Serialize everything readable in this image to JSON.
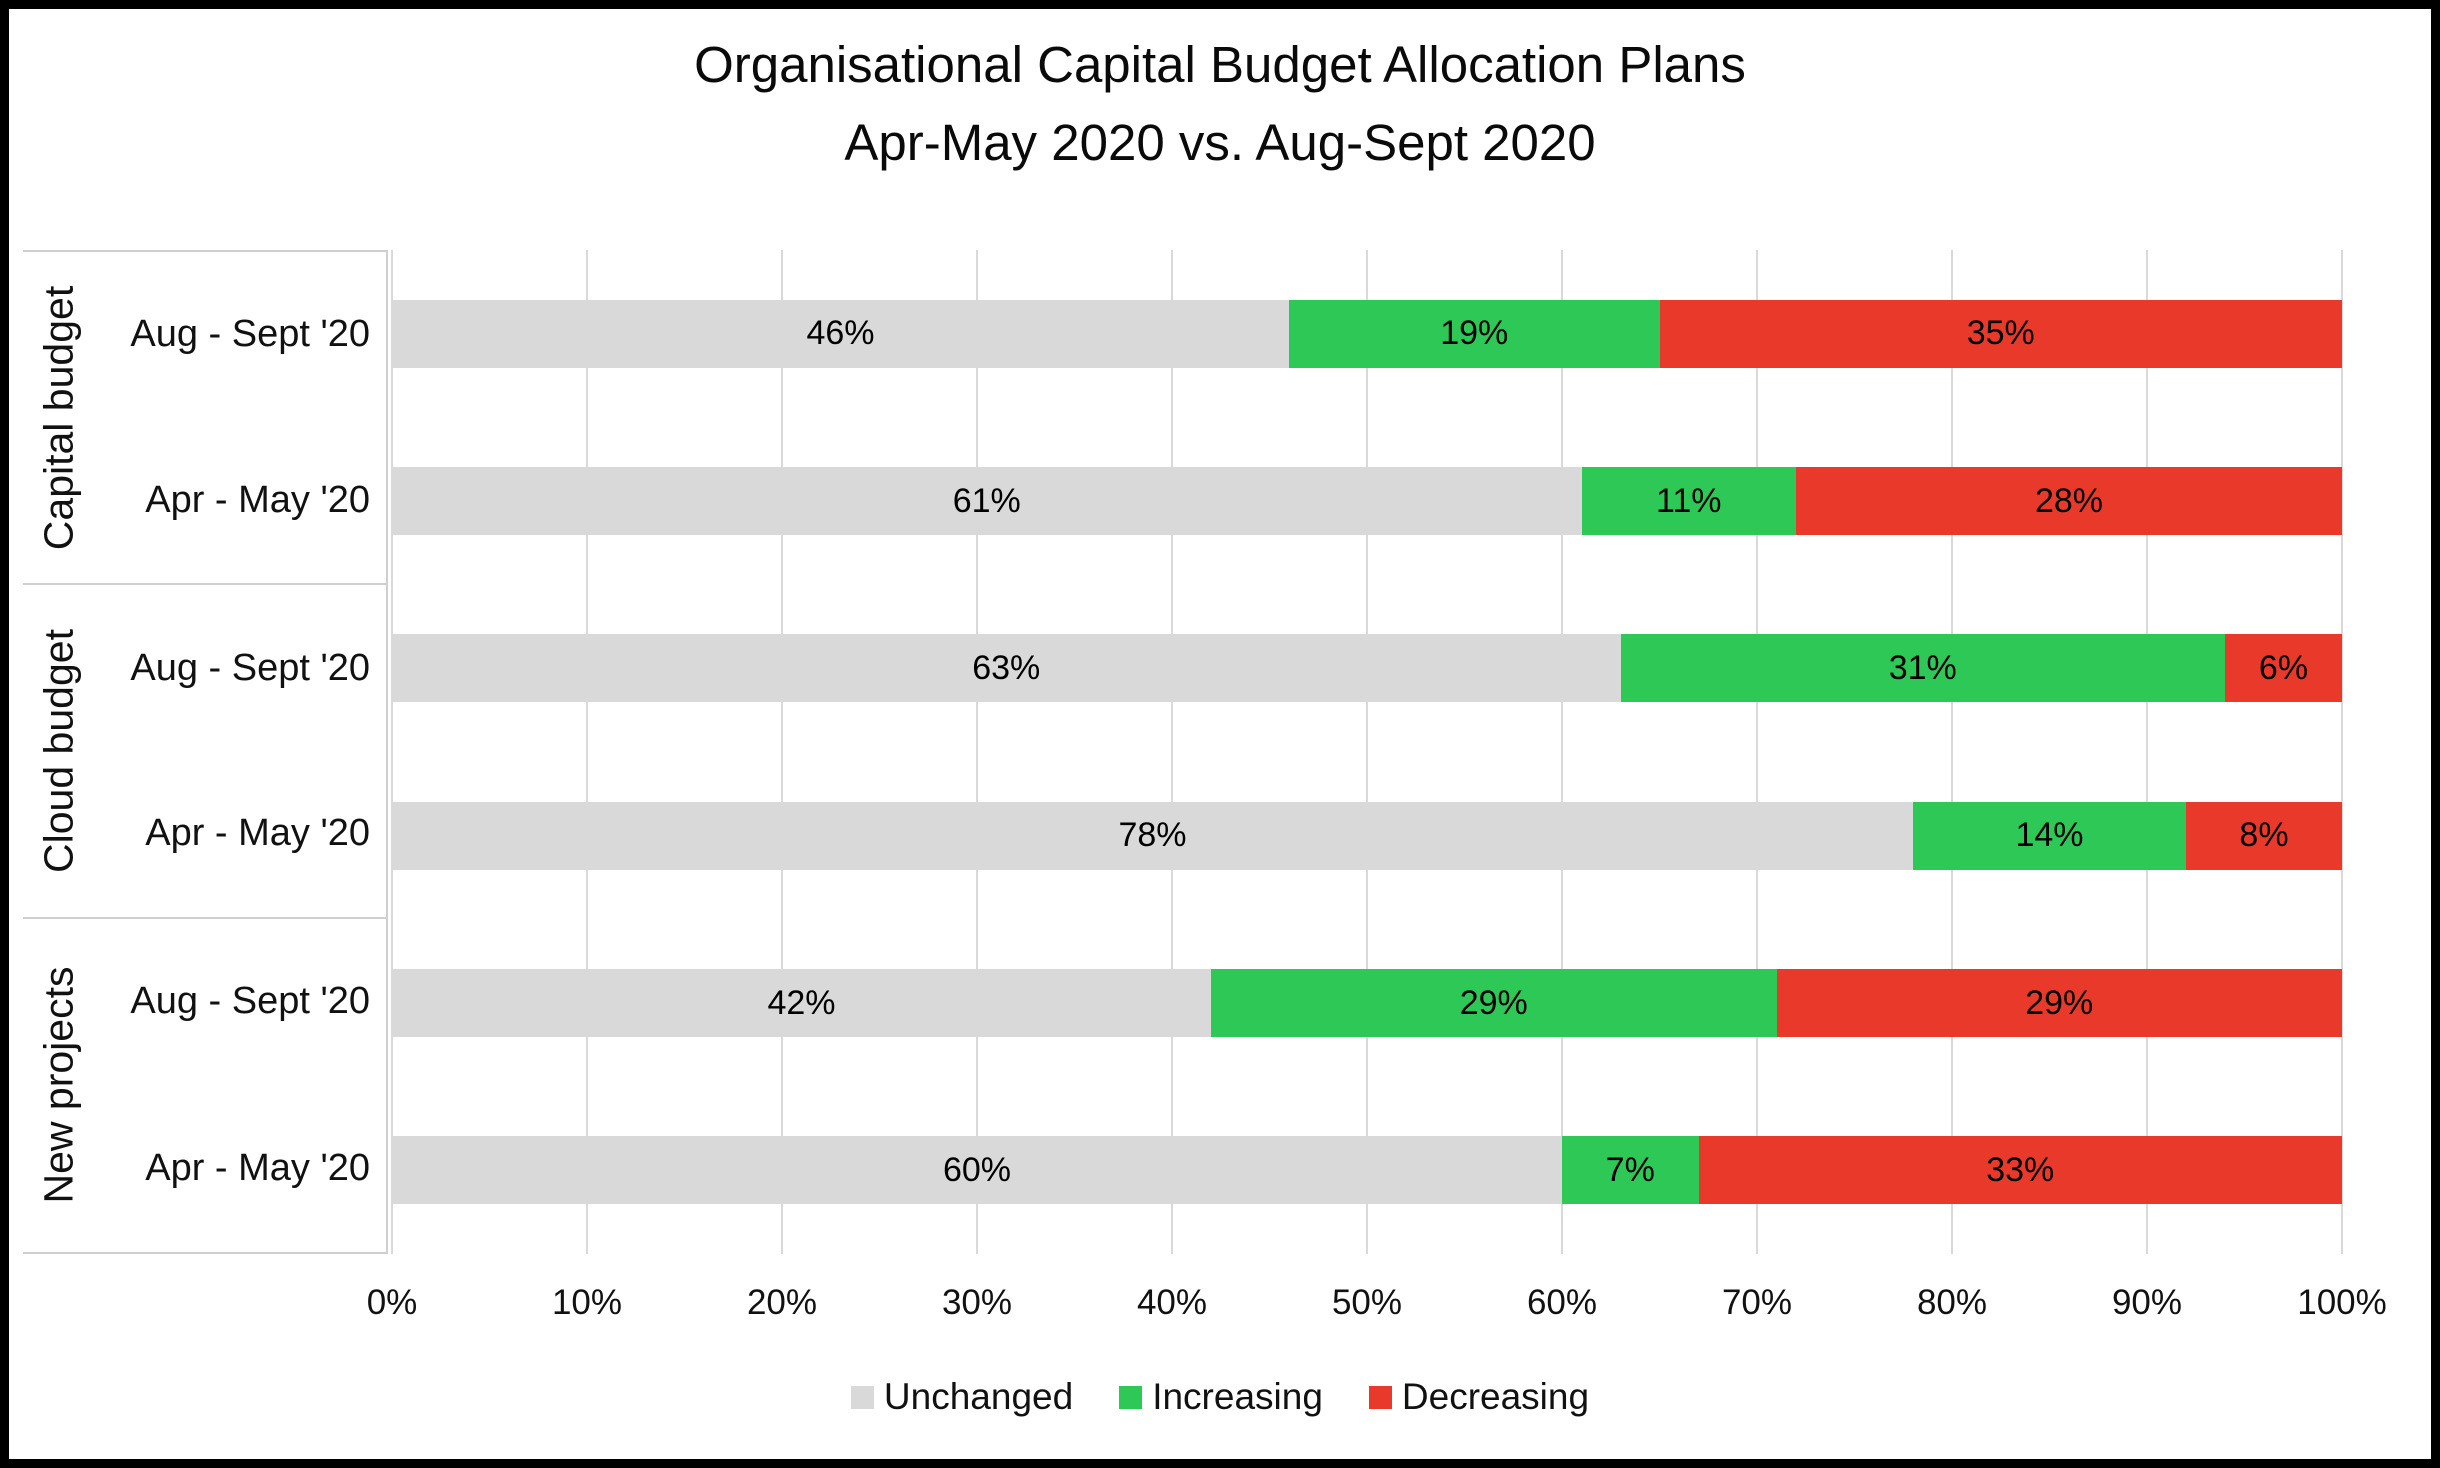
{
  "title": {
    "line1": "Organisational Capital Budget Allocation Plans",
    "line2": "Apr-May 2020 vs. Aug-Sept 2020"
  },
  "colors": {
    "unchanged": "#d9d9d9",
    "increasing": "#2dc855",
    "decreasing": "#e9392b",
    "gridline": "#d9d9d9",
    "axis_box_border": "#cfcfcf",
    "frame_border": "#000000",
    "text": "#111111"
  },
  "chart_data": {
    "type": "bar",
    "orientation": "horizontal",
    "stacked": true,
    "grid": true,
    "legend_position": "bottom",
    "title": "Organisational Capital Budget Allocation Plans Apr-May 2020 vs. Aug-Sept 2020",
    "xlim": [
      0,
      100
    ],
    "x_ticks": [
      "0%",
      "10%",
      "20%",
      "30%",
      "40%",
      "50%",
      "60%",
      "70%",
      "80%",
      "90%",
      "100%"
    ],
    "value_suffix": "%",
    "series": [
      {
        "name": "Unchanged",
        "key": "unchanged"
      },
      {
        "name": "Increasing",
        "key": "increasing"
      },
      {
        "name": "Decreasing",
        "key": "decreasing"
      }
    ],
    "groups": [
      {
        "label": "Capital budget",
        "rows": [
          {
            "label": "Aug - Sept '20",
            "values": {
              "unchanged": 46,
              "increasing": 19,
              "decreasing": 35
            }
          },
          {
            "label": "Apr - May '20",
            "values": {
              "unchanged": 61,
              "increasing": 11,
              "decreasing": 28
            }
          }
        ]
      },
      {
        "label": "Cloud budget",
        "rows": [
          {
            "label": "Aug - Sept '20",
            "values": {
              "unchanged": 63,
              "increasing": 31,
              "decreasing": 6
            }
          },
          {
            "label": "Apr - May '20",
            "values": {
              "unchanged": 78,
              "increasing": 14,
              "decreasing": 8
            }
          }
        ]
      },
      {
        "label": "New projects",
        "rows": [
          {
            "label": "Aug - Sept '20",
            "values": {
              "unchanged": 42,
              "increasing": 29,
              "decreasing": 29
            }
          },
          {
            "label": "Apr - May '20",
            "values": {
              "unchanged": 60,
              "increasing": 7,
              "decreasing": 33
            }
          }
        ]
      }
    ]
  }
}
